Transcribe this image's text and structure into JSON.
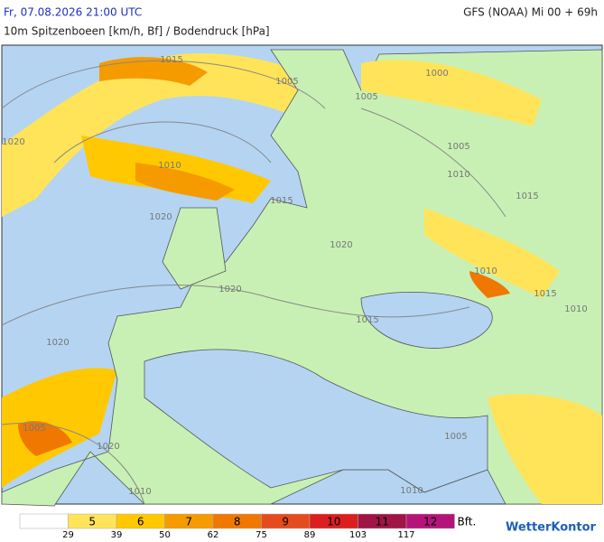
{
  "header": {
    "valid_time": "Fr, 07.08.2026 21:00 UTC",
    "model_run": "GFS (NOAA) Mi 00 + 69h",
    "subtitle": "10m Spitzenboeen [km/h, Bf] / Bodendruck [hPa]"
  },
  "map": {
    "isobar_labels": [
      "1015",
      "1005",
      "1005",
      "1000",
      "1020",
      "1005",
      "1010",
      "1010",
      "1015",
      "1020",
      "1015",
      "1020",
      "1020",
      "1010",
      "1015",
      "1010",
      "1015",
      "1020",
      "1005",
      "1020",
      "1005",
      "1010",
      "1010"
    ]
  },
  "legend": {
    "colors": [
      "#ffffff",
      "#ffe45a",
      "#ffc800",
      "#f59b00",
      "#f07800",
      "#e64b1e",
      "#dc1e1e",
      "#a01446",
      "#b4147a"
    ],
    "bft_labels": [
      "5",
      "6",
      "7",
      "8",
      "9",
      "10",
      "11",
      "12"
    ],
    "thresholds": [
      29,
      39,
      50,
      62,
      75,
      89,
      103,
      117
    ],
    "unit": "Bft."
  },
  "logo": "WetterKontor"
}
